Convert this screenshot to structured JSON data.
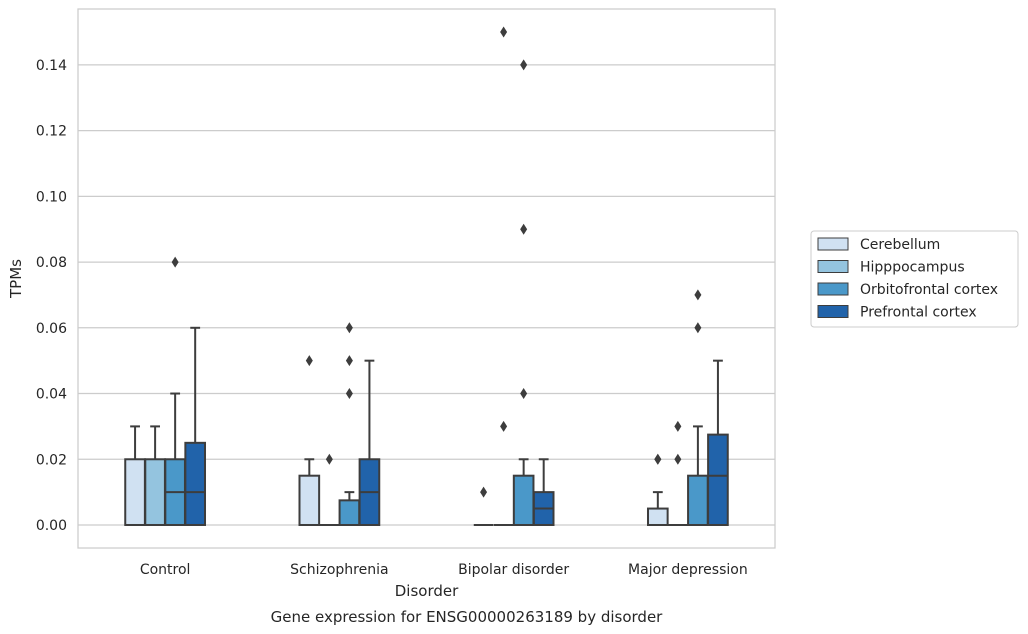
{
  "chart_data": {
    "type": "box",
    "title": "",
    "caption": "Gene expression for ENSG00000263189 by disorder",
    "xlabel": "Disorder",
    "ylabel": "TPMs",
    "ylim": [
      -0.007,
      0.157
    ],
    "yticks": [
      0.0,
      0.02,
      0.04,
      0.06,
      0.08,
      0.1,
      0.12,
      0.14
    ],
    "ytick_labels": [
      "0.00",
      "0.02",
      "0.04",
      "0.06",
      "0.08",
      "0.10",
      "0.12",
      "0.14"
    ],
    "grid": true,
    "legend_position": "right",
    "categories": [
      "Control",
      "Schizophrenia",
      "Bipolar disorder",
      "Major depression"
    ],
    "series": [
      {
        "name": "Cerebellum",
        "color": "#d0e1f2",
        "boxes": [
          {
            "q1": 0.0,
            "median": 0.0,
            "q3": 0.02,
            "whisker_low": 0.0,
            "whisker_high": 0.03,
            "outliers": []
          },
          {
            "q1": 0.0,
            "median": 0.0,
            "q3": 0.015,
            "whisker_low": 0.0,
            "whisker_high": 0.02,
            "outliers": [
              0.05
            ]
          },
          {
            "q1": 0.0,
            "median": 0.0,
            "q3": 0.0,
            "whisker_low": 0.0,
            "whisker_high": 0.0,
            "outliers": [
              0.01
            ]
          },
          {
            "q1": 0.0,
            "median": 0.0,
            "q3": 0.005,
            "whisker_low": 0.0,
            "whisker_high": 0.01,
            "outliers": [
              0.02,
              0.02
            ]
          }
        ]
      },
      {
        "name": "Hipppocampus",
        "color": "#94c4df",
        "boxes": [
          {
            "q1": 0.0,
            "median": 0.0,
            "q3": 0.02,
            "whisker_low": 0.0,
            "whisker_high": 0.03,
            "outliers": []
          },
          {
            "q1": 0.0,
            "median": 0.0,
            "q3": 0.0,
            "whisker_low": 0.0,
            "whisker_high": 0.0,
            "outliers": [
              0.02
            ]
          },
          {
            "q1": 0.0,
            "median": 0.0,
            "q3": 0.0,
            "whisker_low": 0.0,
            "whisker_high": 0.0,
            "outliers": [
              0.03,
              0.15
            ]
          },
          {
            "q1": 0.0,
            "median": 0.0,
            "q3": 0.0,
            "whisker_low": 0.0,
            "whisker_high": 0.0,
            "outliers": [
              0.02,
              0.03
            ]
          }
        ]
      },
      {
        "name": "Orbitofrontal cortex",
        "color": "#4a98c9",
        "boxes": [
          {
            "q1": 0.0,
            "median": 0.01,
            "q3": 0.02,
            "whisker_low": 0.0,
            "whisker_high": 0.04,
            "outliers": [
              0.08
            ]
          },
          {
            "q1": 0.0,
            "median": 0.0,
            "q3": 0.0075,
            "whisker_low": 0.0,
            "whisker_high": 0.01,
            "outliers": [
              0.04,
              0.05,
              0.06
            ]
          },
          {
            "q1": 0.0,
            "median": 0.0,
            "q3": 0.015,
            "whisker_low": 0.0,
            "whisker_high": 0.02,
            "outliers": [
              0.04,
              0.09,
              0.14
            ]
          },
          {
            "q1": 0.0,
            "median": 0.0,
            "q3": 0.015,
            "whisker_low": 0.0,
            "whisker_high": 0.03,
            "outliers": [
              0.06,
              0.07
            ]
          }
        ]
      },
      {
        "name": "Prefrontal cortex",
        "color": "#2163aa",
        "boxes": [
          {
            "q1": 0.0,
            "median": 0.01,
            "q3": 0.025,
            "whisker_low": 0.0,
            "whisker_high": 0.06,
            "outliers": []
          },
          {
            "q1": 0.0,
            "median": 0.01,
            "q3": 0.02,
            "whisker_low": 0.0,
            "whisker_high": 0.05,
            "outliers": []
          },
          {
            "q1": 0.0,
            "median": 0.005,
            "q3": 0.01,
            "whisker_low": 0.0,
            "whisker_high": 0.02,
            "outliers": []
          },
          {
            "q1": 0.0,
            "median": 0.015,
            "q3": 0.0275,
            "whisker_low": 0.0,
            "whisker_high": 0.05,
            "outliers": []
          }
        ]
      }
    ]
  }
}
